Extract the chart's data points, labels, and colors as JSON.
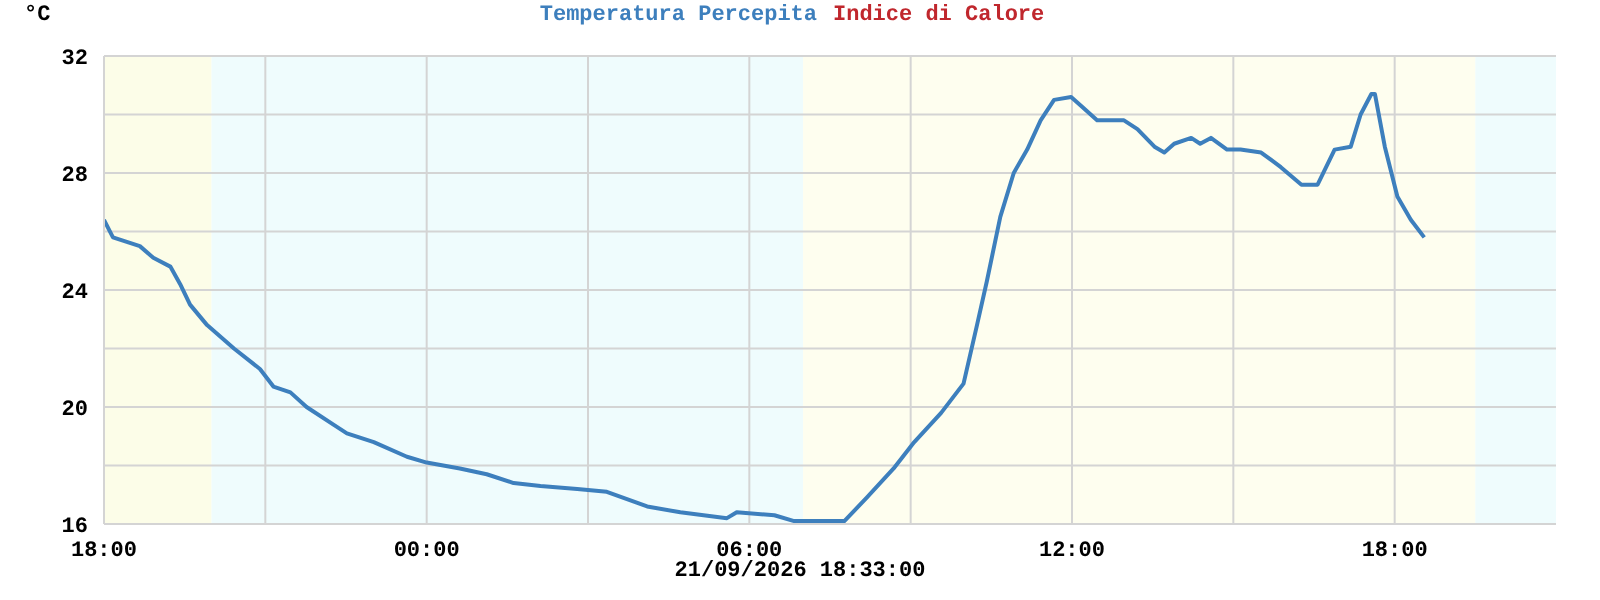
{
  "chart_data": {
    "type": "line",
    "ylabel": "°C",
    "legend": "top",
    "grid": true,
    "marker": "none",
    "line_style": "solid",
    "xlim": [
      "2026-09-20T18:00",
      "2026-09-21T21:00"
    ],
    "ylim": [
      16,
      32
    ],
    "xticks": [
      {
        "value": "2026-09-20T18:00",
        "label": "18:00"
      },
      {
        "value": "2026-09-20T21:00",
        "label": null
      },
      {
        "value": "2026-09-21T00:00",
        "label": "00:00"
      },
      {
        "value": "2026-09-21T03:00",
        "label": null
      },
      {
        "value": "2026-09-21T06:00",
        "label": "06:00"
      },
      {
        "value": "2026-09-21T09:00",
        "label": null
      },
      {
        "value": "2026-09-21T12:00",
        "label": "12:00"
      },
      {
        "value": "2026-09-21T15:00",
        "label": null
      },
      {
        "value": "2026-09-21T18:00",
        "label": "18:00"
      }
    ],
    "yticks": [
      16,
      {
        "value": 18,
        "label": null
      },
      20,
      {
        "value": 22,
        "label": null
      },
      24,
      {
        "value": 26,
        "label": null
      },
      28,
      {
        "value": 30,
        "label": null
      },
      32
    ],
    "bands": [
      {
        "axis": "x",
        "from": "2026-09-20T18:00",
        "to": "2026-09-20T20:00",
        "color": "#fcfde8"
      },
      {
        "axis": "x",
        "from": "2026-09-20T20:00",
        "to": "2026-09-21T07:00",
        "color": "#effcfd"
      },
      {
        "axis": "x",
        "from": "2026-09-21T07:00",
        "to": "2026-09-21T19:30",
        "color": "#fefeef"
      },
      {
        "axis": "x",
        "from": "2026-09-21T19:30",
        "to": "2026-09-21T21:00",
        "color": "#effcfd"
      }
    ],
    "x": [
      "2026-09-20T18:00",
      "2026-09-20T18:10",
      "2026-09-20T18:40",
      "2026-09-20T18:55",
      "2026-09-20T19:14",
      "2026-09-20T19:25",
      "2026-09-20T19:36",
      "2026-09-20T19:55",
      "2026-09-20T20:25",
      "2026-09-20T20:54",
      "2026-09-20T21:09",
      "2026-09-20T21:28",
      "2026-09-20T21:46",
      "2026-09-20T22:16",
      "2026-09-20T22:31",
      "2026-09-20T23:01",
      "2026-09-20T23:38",
      "2026-09-21T00:00",
      "2026-09-21T00:37",
      "2026-09-21T01:07",
      "2026-09-21T01:37",
      "2026-09-21T02:07",
      "2026-09-21T02:48",
      "2026-09-21T03:21",
      "2026-09-21T04:06",
      "2026-09-21T04:43",
      "2026-09-21T05:35",
      "2026-09-21T05:46",
      "2026-09-21T06:28",
      "2026-09-21T06:50",
      "2026-09-21T07:46",
      "2026-09-21T08:11",
      "2026-09-21T08:41",
      "2026-09-21T09:04",
      "2026-09-21T09:34",
      "2026-09-21T09:59",
      "2026-09-21T10:14",
      "2026-09-21T10:25",
      "2026-09-21T10:40",
      "2026-09-21T10:55",
      "2026-09-21T11:10",
      "2026-09-21T11:25",
      "2026-09-21T11:40",
      "2026-09-21T11:59",
      "2026-09-21T12:10",
      "2026-09-21T12:28",
      "2026-09-21T12:58",
      "2026-09-21T13:13",
      "2026-09-21T13:32",
      "2026-09-21T13:43",
      "2026-09-21T13:54",
      "2026-09-21T14:13",
      "2026-09-21T14:23",
      "2026-09-21T14:35",
      "2026-09-21T14:53",
      "2026-09-21T15:08",
      "2026-09-21T15:31",
      "2026-09-21T15:53",
      "2026-09-21T16:16",
      "2026-09-21T16:34",
      "2026-09-21T16:53",
      "2026-09-21T17:11",
      "2026-09-21T17:22",
      "2026-09-21T17:34",
      "2026-09-21T17:38",
      "2026-09-21T17:49",
      "2026-09-21T18:03",
      "2026-09-21T18:18",
      "2026-09-21T18:33"
    ],
    "series": [
      {
        "name": "Temperatura Percepita",
        "color": "#3d7fbd",
        "values": [
          26.4,
          25.8,
          25.5,
          25.1,
          24.8,
          24.2,
          23.5,
          22.8,
          22.0,
          21.3,
          20.7,
          20.5,
          20.0,
          19.4,
          19.1,
          18.8,
          18.3,
          18.1,
          17.9,
          17.7,
          17.4,
          17.3,
          17.2,
          17.1,
          16.6,
          16.4,
          16.2,
          16.4,
          16.3,
          16.1,
          16.1,
          16.9,
          17.9,
          18.8,
          19.8,
          20.8,
          22.8,
          24.3,
          26.5,
          28.0,
          28.8,
          29.8,
          30.5,
          30.6,
          30.3,
          29.8,
          29.8,
          29.5,
          28.9,
          28.7,
          29.0,
          29.2,
          29.0,
          29.2,
          28.8,
          28.8,
          28.7,
          28.2,
          27.6,
          27.6,
          28.8,
          28.9,
          30.0,
          30.7,
          30.7,
          28.9,
          27.2,
          26.4,
          25.8
        ]
      },
      {
        "name": "Indice di Calore",
        "color": "#c0272d",
        "values": [
          null,
          null,
          null,
          null,
          null,
          null,
          null,
          null,
          null,
          null,
          null,
          null,
          null,
          null,
          null,
          null,
          null,
          null,
          null,
          null,
          null,
          null,
          null,
          null,
          null,
          null,
          null,
          null,
          null,
          null,
          null,
          null,
          null,
          null,
          null,
          null,
          null,
          null,
          null,
          null,
          null,
          null,
          null,
          null,
          null,
          null,
          null,
          null,
          null,
          null,
          null,
          null,
          null,
          null,
          null,
          null,
          null,
          null,
          null,
          null,
          null,
          null,
          null,
          null,
          null,
          null,
          null,
          null,
          null
        ]
      }
    ],
    "annotations": [
      "21/09/2026 18:33:00"
    ]
  }
}
